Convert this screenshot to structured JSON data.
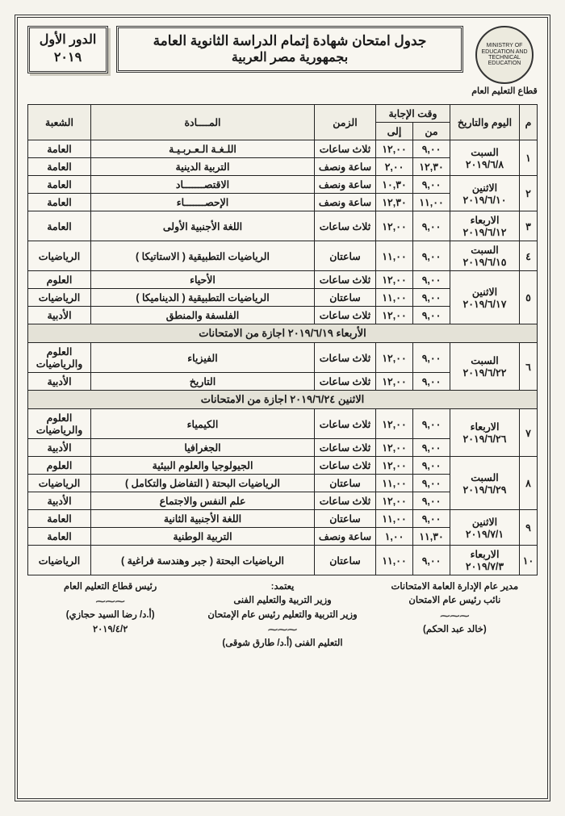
{
  "header": {
    "ministry_ring": "MINISTRY OF EDUCATION AND TECHNICAL EDUCATION",
    "sector": "قطاع التعليم العام",
    "title_line1": "جدول امتحان شهادة إتمام الدراسة الثانوية العامة",
    "title_line2": "بجمهورية مصر العربية",
    "round_line1": "الدور الأول",
    "round_line2": "٢٠١٩"
  },
  "columns": {
    "num": "م",
    "date": "اليوم والتاريخ",
    "time_group": "وقت الإجابة",
    "from": "من",
    "to": "إلى",
    "duration": "الزمن",
    "subject": "المــــادة",
    "track": "الشعبة"
  },
  "rows": [
    {
      "num": "١",
      "date": "السبت\n٢٠١٩/٦/٨",
      "sessions": [
        {
          "from": "٩,٠٠",
          "to": "١٢,٠٠",
          "dur": "ثلاث ساعات",
          "subject": "اللـغـة الـعـربـيـة",
          "track": "العامة"
        },
        {
          "from": "١٢,٣٠",
          "to": "٢,٠٠",
          "dur": "ساعة ونصف",
          "subject": "التربية الدينية",
          "track": "العامة"
        }
      ]
    },
    {
      "num": "٢",
      "date": "الاثنين\n٢٠١٩/٦/١٠",
      "sessions": [
        {
          "from": "٩,٠٠",
          "to": "١٠,٣٠",
          "dur": "ساعة ونصف",
          "subject": "الاقتصـــــــاد",
          "track": "العامة"
        },
        {
          "from": "١١,٠٠",
          "to": "١٢,٣٠",
          "dur": "ساعة ونصف",
          "subject": "الإحصـــــــاء",
          "track": "العامة"
        }
      ]
    },
    {
      "num": "٣",
      "date": "الاربعاء\n٢٠١٩/٦/١٢",
      "sessions": [
        {
          "from": "٩,٠٠",
          "to": "١٢,٠٠",
          "dur": "ثلاث ساعات",
          "subject": "اللغة الأجنبية الأولى",
          "track": "العامة"
        }
      ]
    },
    {
      "num": "٤",
      "date": "السبت\n٢٠١٩/٦/١٥",
      "sessions": [
        {
          "from": "٩,٠٠",
          "to": "١١,٠٠",
          "dur": "ساعتان",
          "subject": "الرياضيات التطبيقية ( الاستاتيكا )",
          "track": "الرياضيات"
        }
      ]
    },
    {
      "num": "٥",
      "date": "الاثنين\n٢٠١٩/٦/١٧",
      "sessions": [
        {
          "from": "٩,٠٠",
          "to": "١٢,٠٠",
          "dur": "ثلاث ساعات",
          "subject": "الأحياء",
          "track": "العلوم"
        },
        {
          "from": "٩,٠٠",
          "to": "١١,٠٠",
          "dur": "ساعتان",
          "subject": "الرياضيات التطبيقية ( الديناميكا )",
          "track": "الرياضيات"
        },
        {
          "from": "٩,٠٠",
          "to": "١٢,٠٠",
          "dur": "ثلاث ساعات",
          "subject": "الفلسفة والمنطق",
          "track": "الأدبية"
        }
      ]
    },
    {
      "holiday": "الأربعاء ٢٠١٩/٦/١٩ اجازة من الامتحانات"
    },
    {
      "num": "٦",
      "date": "السبت\n٢٠١٩/٦/٢٢",
      "sessions": [
        {
          "from": "٩,٠٠",
          "to": "١٢,٠٠",
          "dur": "ثلاث ساعات",
          "subject": "الفيزياء",
          "track": "العلوم والرياضيات"
        },
        {
          "from": "٩,٠٠",
          "to": "١٢,٠٠",
          "dur": "ثلاث ساعات",
          "subject": "التاريخ",
          "track": "الأدبية"
        }
      ]
    },
    {
      "holiday": "الاثنين ٢٠١٩/٦/٢٤ اجازة من الامتحانات"
    },
    {
      "num": "٧",
      "date": "الاربعاء\n٢٠١٩/٦/٢٦",
      "sessions": [
        {
          "from": "٩,٠٠",
          "to": "١٢,٠٠",
          "dur": "ثلاث ساعات",
          "subject": "الكيمياء",
          "track": "العلوم والرياضيات"
        },
        {
          "from": "٩,٠٠",
          "to": "١٢,٠٠",
          "dur": "ثلاث ساعات",
          "subject": "الجغرافيا",
          "track": "الأدبية"
        }
      ]
    },
    {
      "num": "٨",
      "date": "السبت\n٢٠١٩/٦/٢٩",
      "sessions": [
        {
          "from": "٩,٠٠",
          "to": "١٢,٠٠",
          "dur": "ثلاث ساعات",
          "subject": "الجيولوجيا والعلوم البيئية",
          "track": "العلوم"
        },
        {
          "from": "٩,٠٠",
          "to": "١١,٠٠",
          "dur": "ساعتان",
          "subject": "الرياضيات البحتة ( التفاضل والتكامل )",
          "track": "الرياضيات"
        },
        {
          "from": "٩,٠٠",
          "to": "١٢,٠٠",
          "dur": "ثلاث ساعات",
          "subject": "علم النفس والاجتماع",
          "track": "الأدبية"
        }
      ]
    },
    {
      "num": "٩",
      "date": "الاثنين\n٢٠١٩/٧/١",
      "sessions": [
        {
          "from": "٩,٠٠",
          "to": "١١,٠٠",
          "dur": "ساعتان",
          "subject": "اللغة الأجنبية الثانية",
          "track": "العامة"
        },
        {
          "from": "١١,٣٠",
          "to": "١,٠٠",
          "dur": "ساعة ونصف",
          "subject": "التربية الوطنية",
          "track": "العامة"
        }
      ]
    },
    {
      "num": "١٠",
      "date": "الاربعاء\n٢٠١٩/٧/٣",
      "sessions": [
        {
          "from": "٩,٠٠",
          "to": "١١,٠٠",
          "dur": "ساعتان",
          "subject": "الرياضيات البحتة ( جبر وهندسة فراغية )",
          "track": "الرياضيات"
        }
      ]
    }
  ],
  "footer": {
    "right1": "مدير عام الإدارة العامة الامتحانات",
    "right2": "نائب رئيس عام الامتحان",
    "right_name": "(خالد عبد الحكم)",
    "center_approve": "يعتمد:",
    "center1": "وزير التربية والتعليم الفنى",
    "center2": "وزير التربية والتعليم رئيس عام الإمتحان",
    "center3": "التعليم الفنى  (أ.د/ طارق شوقى)",
    "left1": "رئيس قطاع التعليم العام",
    "left_name": "(أ.د/ رضا السيد حجازي)",
    "left_date": "٢٠١٩/٤/٢"
  },
  "colors": {
    "ink": "#1a1a1a",
    "paper": "#f8f6f0",
    "shade": "#e4e2d7"
  }
}
